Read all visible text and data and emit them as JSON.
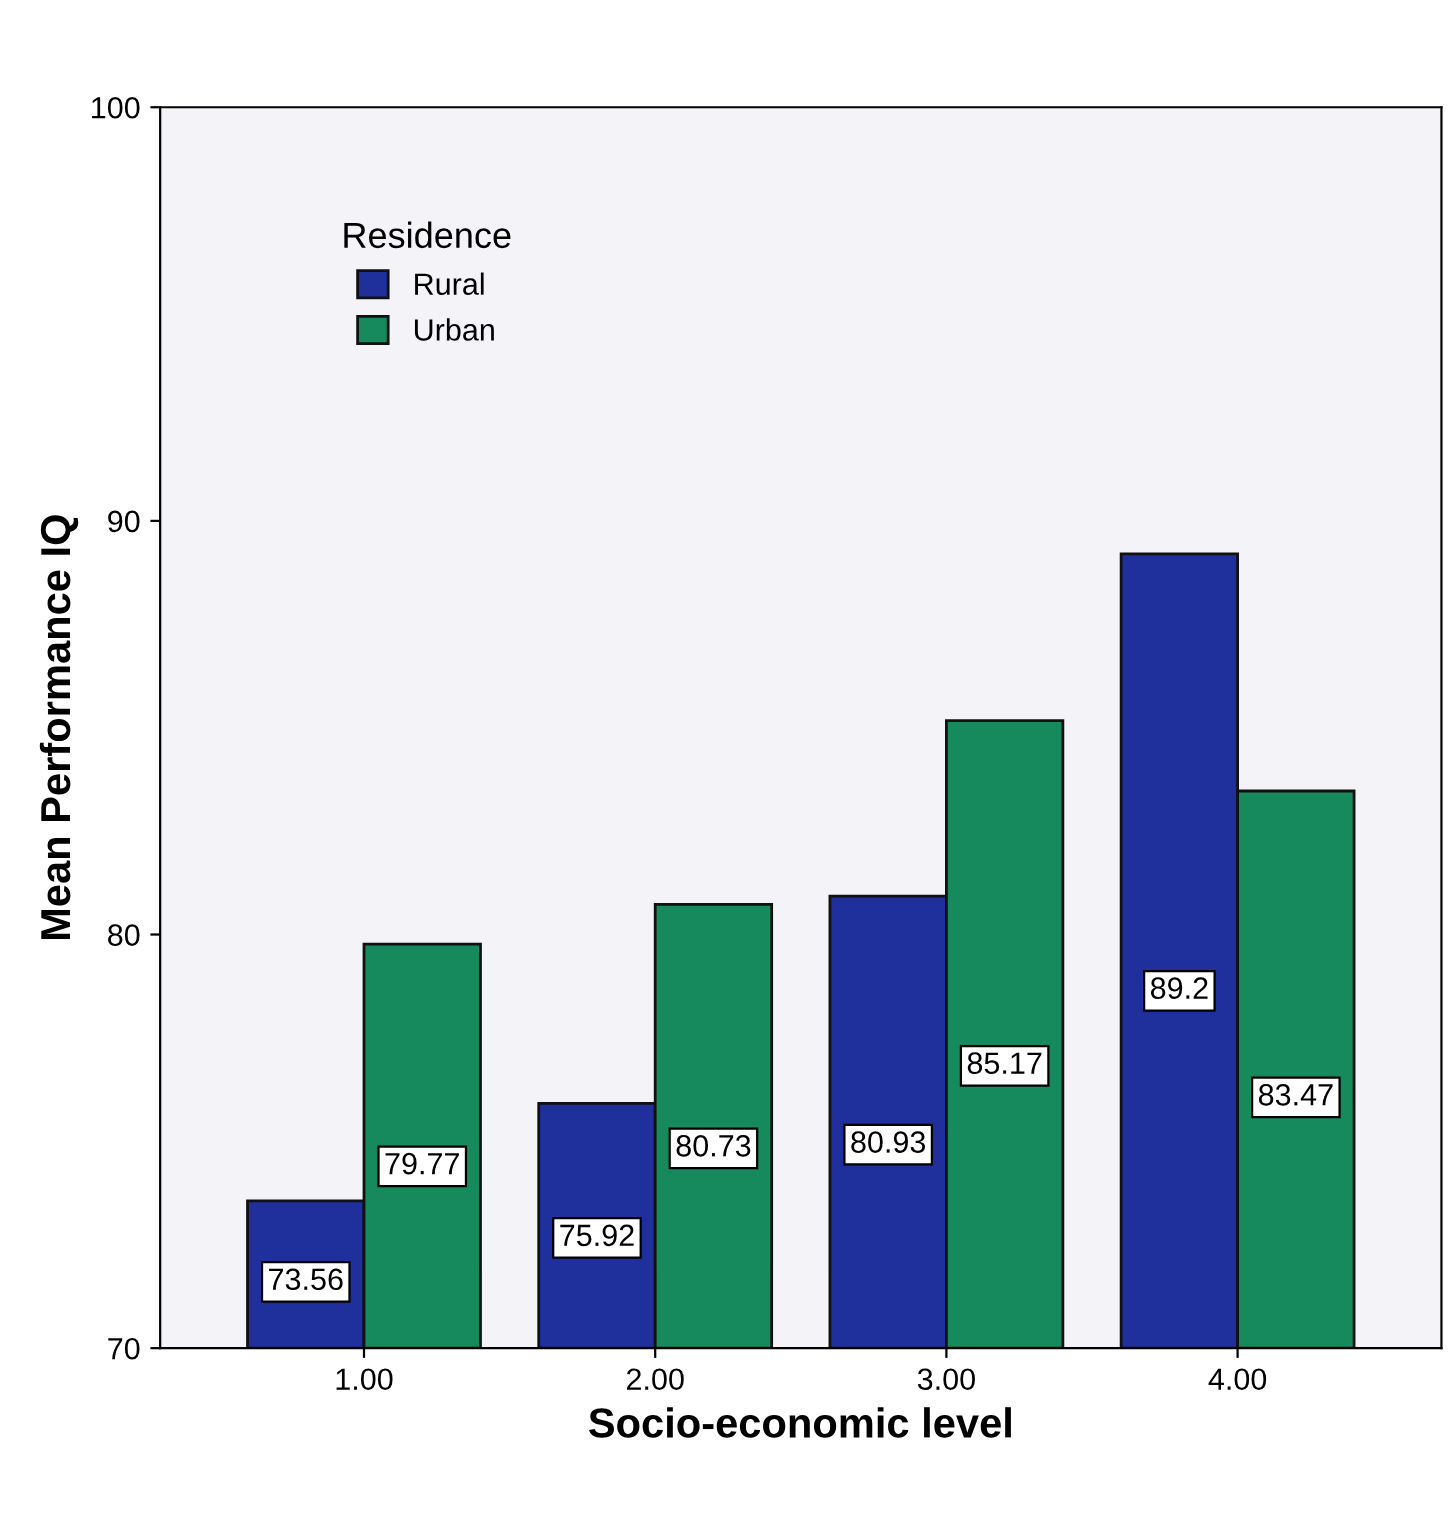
{
  "chart_data": {
    "type": "bar",
    "xlabel": "Socio-economic level",
    "ylabel": "Mean Performance IQ",
    "legend_title": "Residence",
    "categories": [
      "1.00",
      "2.00",
      "3.00",
      "4.00"
    ],
    "series": [
      {
        "name": "Rural",
        "color": "#1f2f9c",
        "values": [
          73.56,
          75.92,
          80.93,
          89.2
        ]
      },
      {
        "name": "Urban",
        "color": "#168a5c",
        "values": [
          79.77,
          80.73,
          85.17,
          83.47
        ]
      }
    ],
    "ylim": [
      70,
      100
    ],
    "yticks": [
      70,
      80,
      90,
      100
    ],
    "data_labels": true,
    "legend": "top left",
    "grid": false
  }
}
